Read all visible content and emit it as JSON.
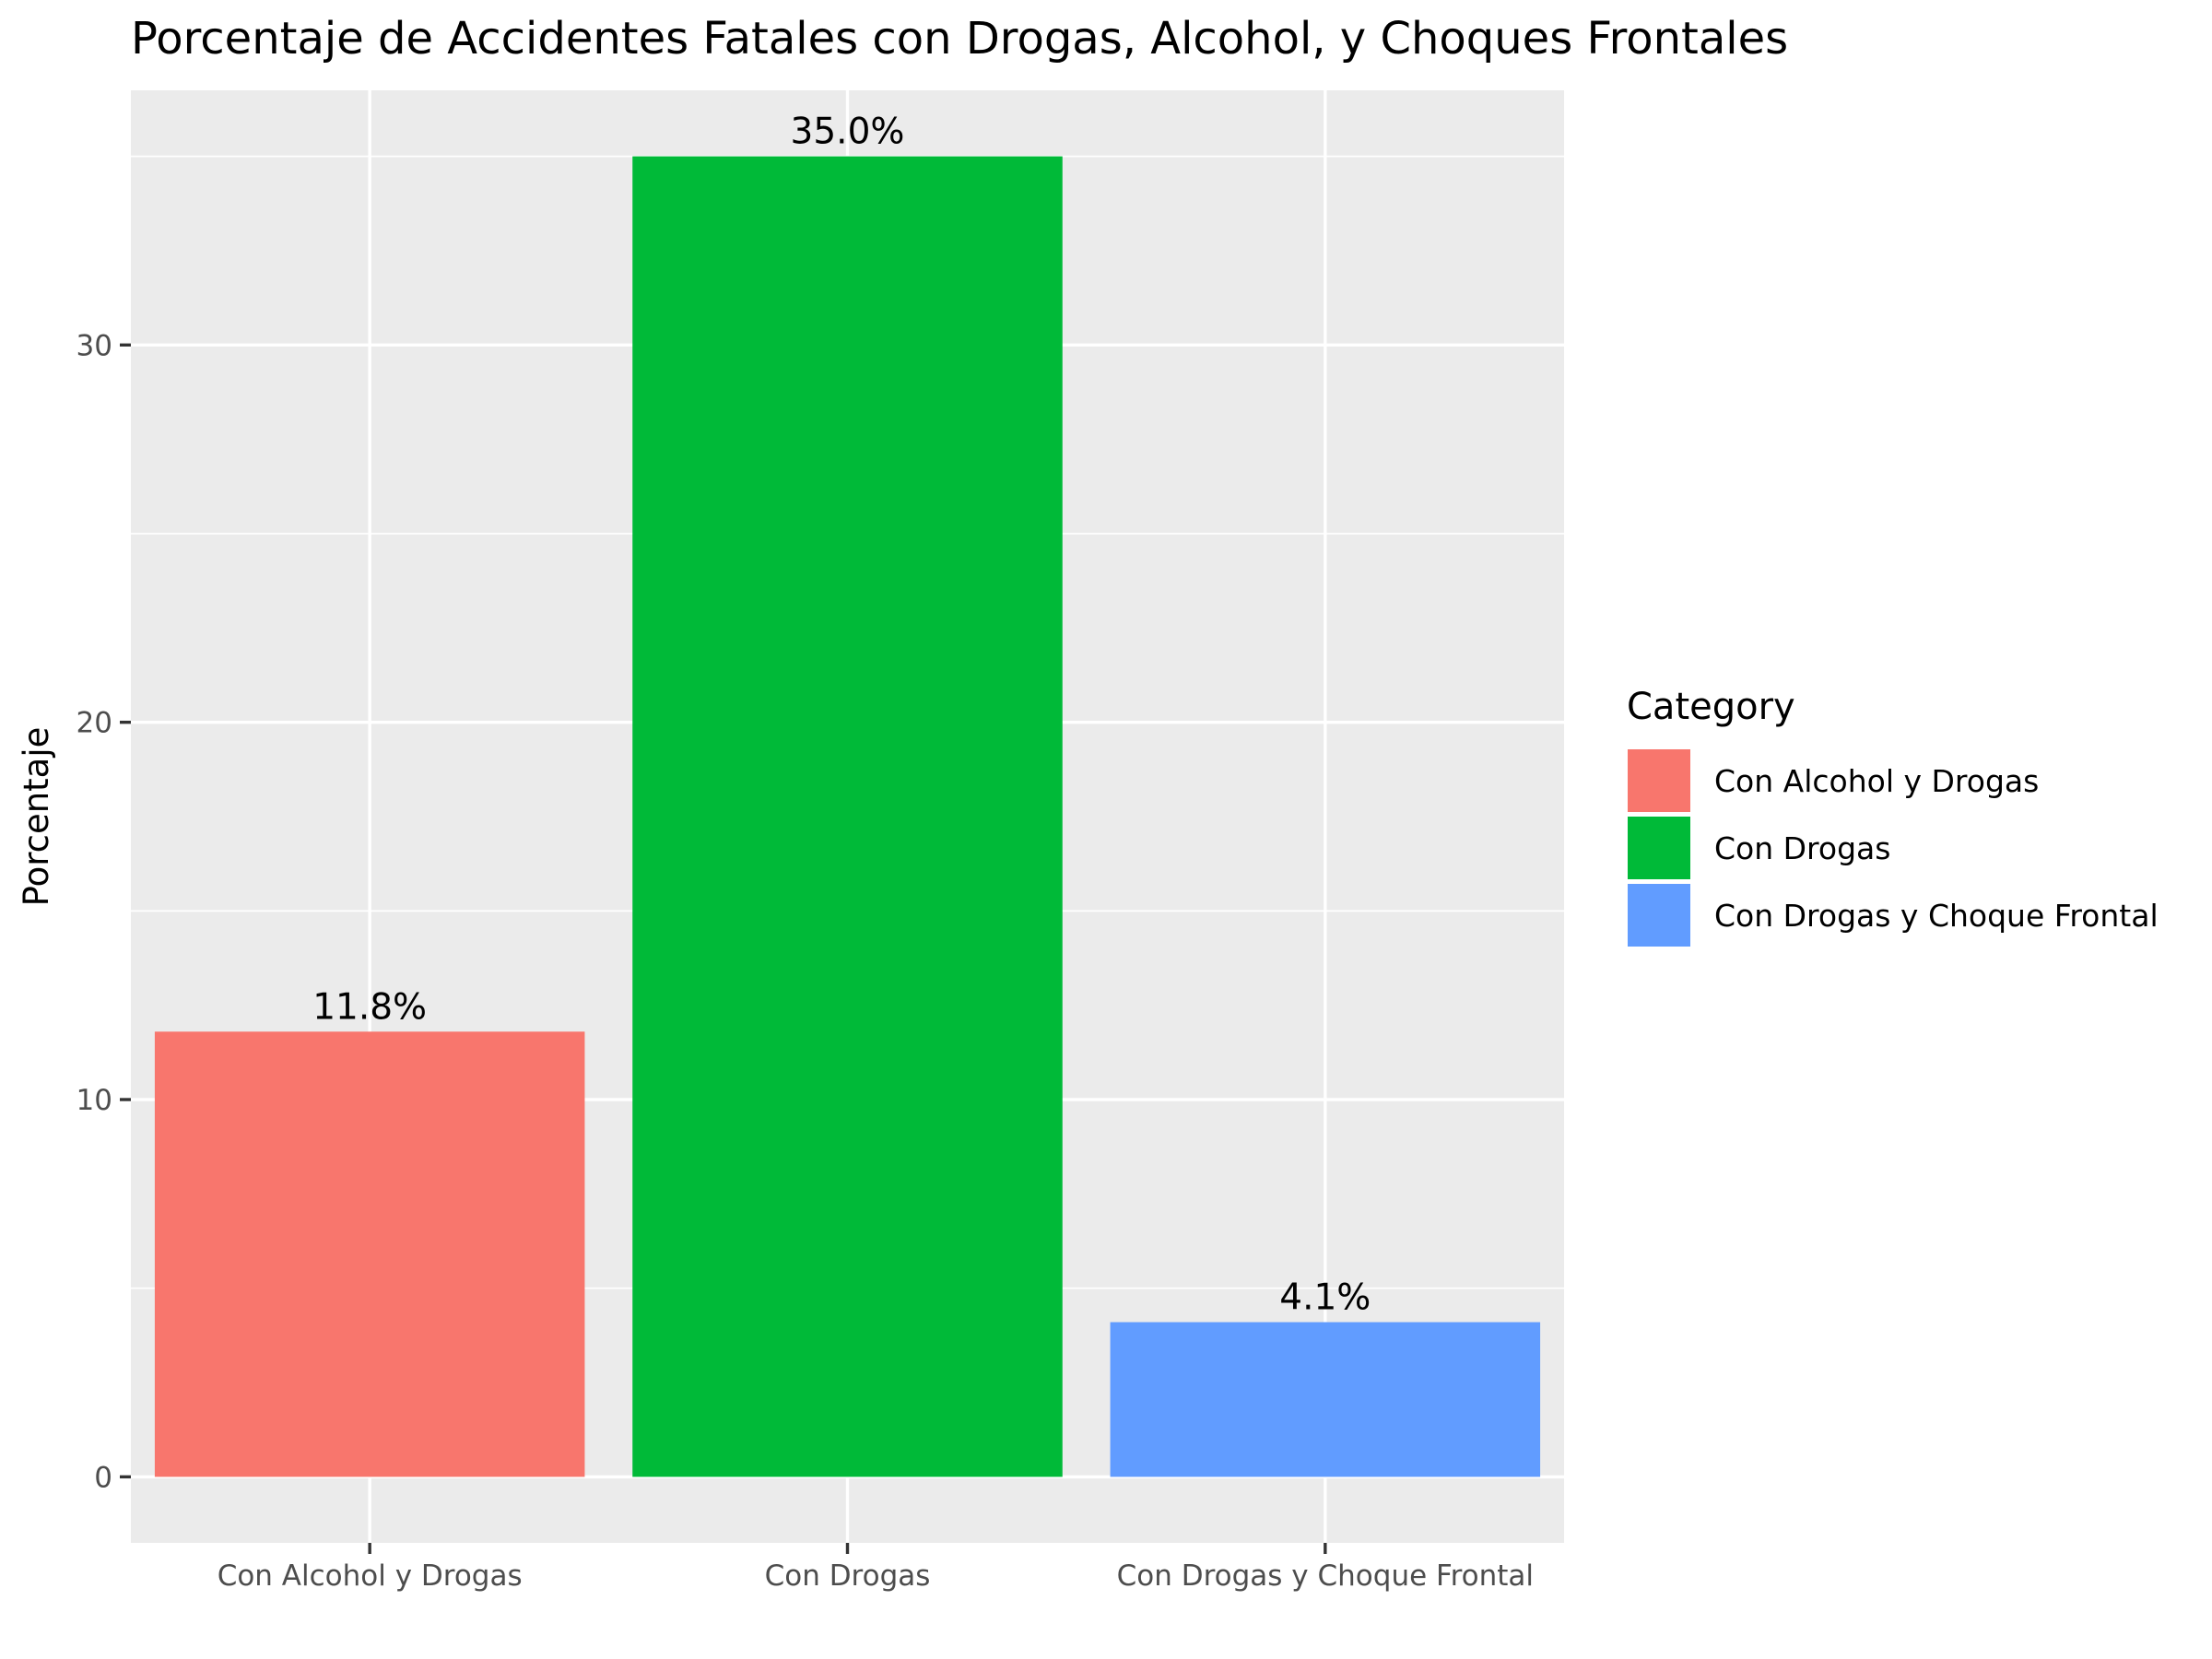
{
  "chart_data": {
    "type": "bar",
    "title": "Porcentaje de Accidentes Fatales con Drogas, Alcohol, y Choques Frontales",
    "xlabel": "",
    "ylabel": "Porcentaje",
    "categories": [
      "Con Alcohol y Drogas",
      "Con Drogas",
      "Con Drogas y Choque Frontal"
    ],
    "values": [
      11.8,
      35.0,
      4.1
    ],
    "data_labels": [
      "11.8%",
      "35.0%",
      "4.1%"
    ],
    "colors": [
      "#F8766D",
      "#00BA38",
      "#619CFF"
    ],
    "ylim": [
      -1.75,
      36.75
    ],
    "y_ticks": [
      0,
      10,
      20,
      30
    ],
    "y_tick_labels": [
      "0",
      "10",
      "20",
      "30"
    ],
    "y_minor_ticks": [
      5,
      15,
      25,
      35
    ],
    "grid": true,
    "panel_background": "#EBEBEB",
    "legend": {
      "title": "Category",
      "placement": "right",
      "entries": [
        "Con Alcohol y Drogas",
        "Con Drogas",
        "Con Drogas y Choque Frontal"
      ]
    }
  }
}
